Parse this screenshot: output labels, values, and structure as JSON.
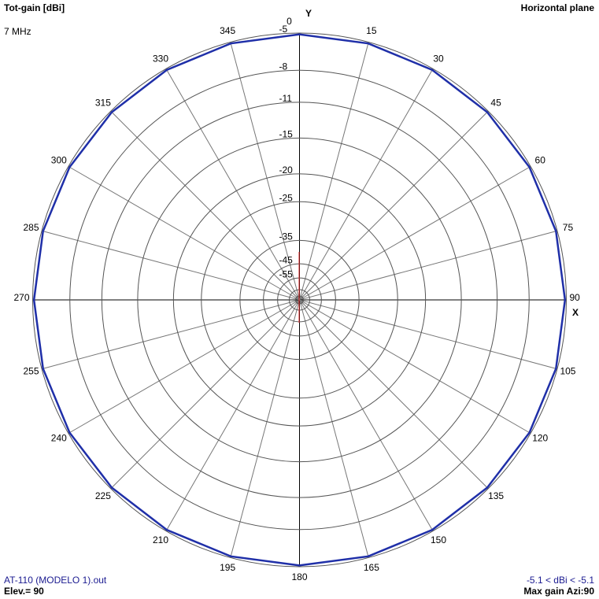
{
  "chart_data": {
    "type": "polar",
    "title": "Tot-gain [dBi]",
    "subtitle": "7 MHz",
    "plane": "Horizontal plane",
    "y_axis_label": "Y",
    "x_axis_label": "X",
    "file_label": "AT-110 (MODELO 1).out",
    "elevation_label": "Elev.= 90",
    "range_label": "-5.1 < dBi < -5.1",
    "max_gain_label": "Max gain Azi:90",
    "rlim": [
      -55,
      -5
    ],
    "rticks": [
      -5,
      -8,
      -11,
      -15,
      -20,
      -25,
      -35,
      -45,
      -55
    ],
    "angle_ticks": [
      0,
      15,
      30,
      45,
      60,
      75,
      90,
      105,
      120,
      135,
      150,
      165,
      180,
      195,
      210,
      225,
      240,
      255,
      270,
      285,
      300,
      315,
      330,
      345
    ],
    "x": [
      0,
      15,
      30,
      45,
      60,
      75,
      90,
      105,
      120,
      135,
      150,
      165,
      180,
      195,
      210,
      225,
      240,
      255,
      270,
      285,
      300,
      315,
      330,
      345
    ],
    "series": [
      {
        "name": "AT-110 (MODELO 1).out",
        "color": "#1f2fa8",
        "values": [
          -5.1,
          -5.1,
          -5.1,
          -5.1,
          -5.1,
          -5.1,
          -5.1,
          -5.1,
          -5.1,
          -5.1,
          -5.1,
          -5.1,
          -5.1,
          -5.1,
          -5.1,
          -5.1,
          -5.1,
          -5.1,
          -5.1,
          -5.1,
          -5.1,
          -5.1,
          -5.1,
          -5.1
        ]
      }
    ]
  }
}
